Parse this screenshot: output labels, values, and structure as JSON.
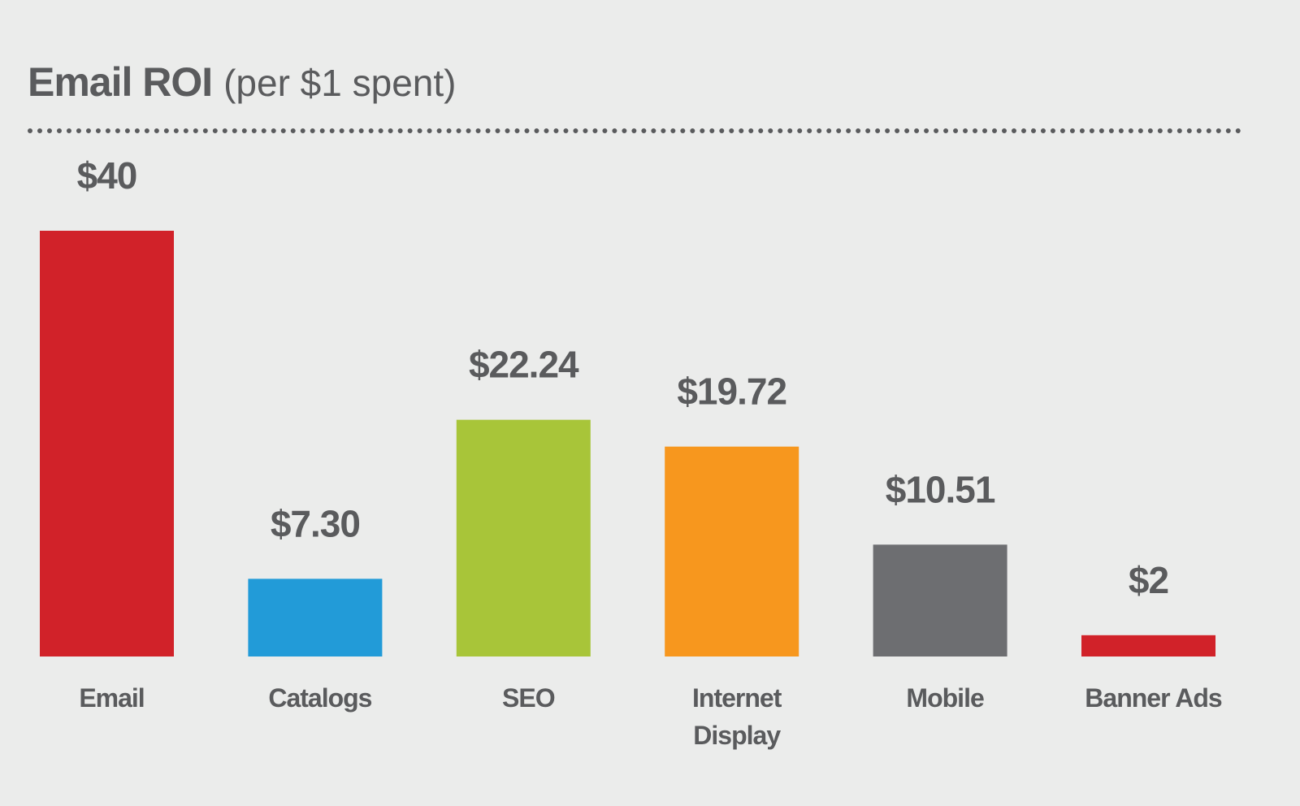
{
  "chart_data": {
    "type": "bar",
    "title": "Email ROI",
    "subtitle": "(per $1 spent)",
    "xlabel": "",
    "ylabel": "",
    "ylim": [
      0,
      40
    ],
    "grid": false,
    "categories": [
      [
        "Email"
      ],
      [
        "Catalogs"
      ],
      [
        "SEO"
      ],
      [
        "Internet",
        "Display"
      ],
      [
        "Mobile"
      ],
      [
        "Banner Ads"
      ]
    ],
    "values": [
      40,
      7.3,
      22.24,
      19.72,
      10.51,
      2
    ],
    "data_labels": [
      "$40",
      "$7.30",
      "$22.24",
      "$19.72",
      "$10.51",
      "$2"
    ],
    "colors": [
      "#d12229",
      "#229bd8",
      "#a8c539",
      "#f7971e",
      "#6d6e71",
      "#d12229"
    ]
  }
}
